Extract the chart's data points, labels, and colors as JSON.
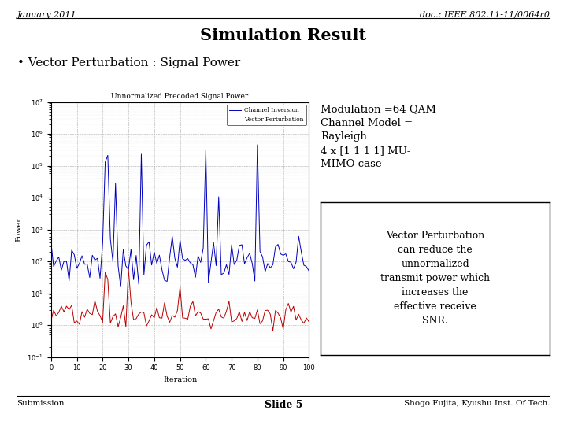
{
  "title_left": "January 2011",
  "title_right": "doc.: IEEE 802.11-11/0064r0",
  "main_title": "Simulation Result",
  "bullet_text": "• Vector Perturbation : Signal Power",
  "plot_title": "Unnormalized Precoded Signal Power",
  "xlabel": "Iteration",
  "ylabel": "Power",
  "legend_labels": [
    "Channel Inversion",
    "Vector Perturbation"
  ],
  "line_colors": [
    "#0000bb",
    "#bb0000"
  ],
  "annotation_top": "Modulation =64 QAM\nChannel Model =\nRayleigh\n4 x [1 1 1 1] MU-\nMIMO case",
  "annotation_box": "Vector Perturbation\ncan reduce the\nunnormalized\ntransmit power which\nincreases the\neffective receive\nSNR.",
  "footer_left": "Submission",
  "footer_center": "Slide 5",
  "footer_right": "Shogo Fujita, Kyushu Inst. Of Tech.",
  "bg_color": "#ffffff",
  "n_points": 101,
  "ymin": 0.1,
  "ymax": 10000000.0
}
